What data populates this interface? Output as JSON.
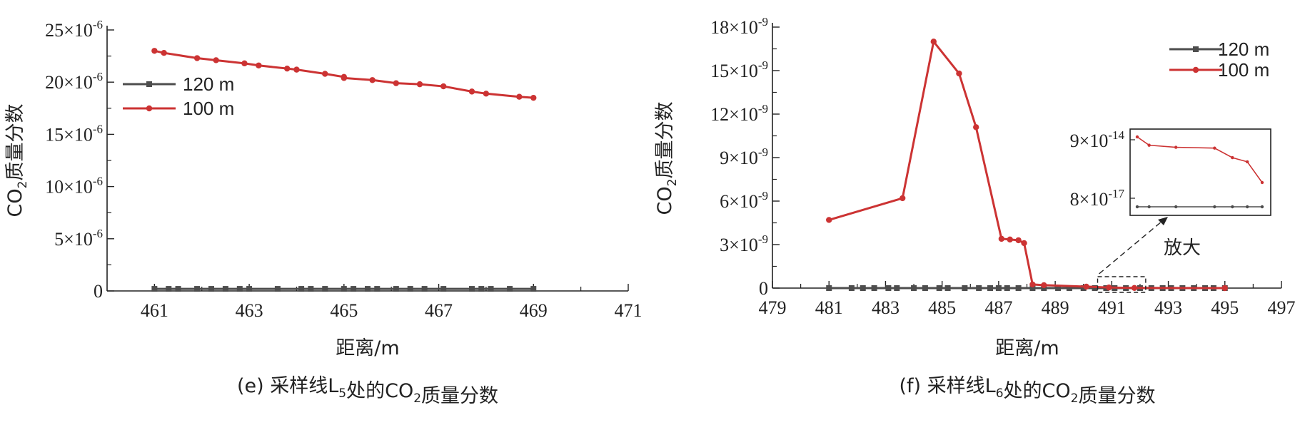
{
  "chart_data": [
    {
      "type": "line",
      "caption": "(e) 采样线L5处的CO2质量分数",
      "xlabel": "距离/m",
      "ylabel": "CO2质量分数",
      "xlim": [
        460,
        471
      ],
      "ylim": [
        0,
        2.5e-05
      ],
      "xticks": [
        461,
        463,
        465,
        467,
        469,
        471
      ],
      "yticks": [
        0,
        5e-06,
        1e-05,
        1.5e-05,
        2e-05,
        2.5e-05
      ],
      "ytick_labels": [
        "0",
        "5×10-6",
        "10×10-6",
        "15×10-6",
        "20×10-6",
        "25×10-6"
      ],
      "legend_position": "upper-left",
      "series": [
        {
          "name": "120 m",
          "color": "#4d4d4d",
          "marker": "square",
          "x": [
            461.0,
            461.3,
            461.5,
            461.9,
            462.2,
            462.5,
            462.8,
            463.0,
            463.6,
            464.1,
            464.3,
            464.6,
            465.0,
            465.2,
            465.5,
            465.7,
            466.1,
            466.4,
            466.7,
            467.1,
            467.7,
            467.9,
            468.1,
            468.5,
            469.0
          ],
          "y": [
            2e-07,
            2e-07,
            2e-07,
            2e-07,
            2e-07,
            2e-07,
            2e-07,
            2e-07,
            2e-07,
            2e-07,
            2e-07,
            2e-07,
            2e-07,
            2e-07,
            2e-07,
            2e-07,
            2e-07,
            2e-07,
            2e-07,
            2e-07,
            2e-07,
            2e-07,
            2e-07,
            2e-07,
            2e-07
          ]
        },
        {
          "name": "100 m",
          "color": "#cc3333",
          "marker": "circle",
          "x": [
            461.0,
            461.2,
            461.9,
            462.3,
            462.9,
            463.2,
            463.8,
            464.0,
            464.6,
            465.0,
            465.0,
            465.6,
            466.1,
            466.6,
            467.1,
            467.7,
            468.0,
            468.7,
            469.0
          ],
          "y": [
            2.3e-05,
            2.28e-05,
            2.23e-05,
            2.21e-05,
            2.18e-05,
            2.16e-05,
            2.13e-05,
            2.12e-05,
            2.08e-05,
            2.05e-05,
            2.04e-05,
            2.02e-05,
            1.99e-05,
            1.98e-05,
            1.96e-05,
            1.91e-05,
            1.89e-05,
            1.86e-05,
            1.85e-05
          ]
        }
      ]
    },
    {
      "type": "line",
      "caption": "(f) 采样线L6处的CO2质量分数",
      "xlabel": "距离/m",
      "ylabel": "CO2质量分数",
      "xlim": [
        479,
        497
      ],
      "ylim": [
        0,
        1.8e-08
      ],
      "xticks": [
        479,
        481,
        483,
        485,
        487,
        489,
        491,
        493,
        495,
        497
      ],
      "yticks": [
        0,
        3e-09,
        6e-09,
        9e-09,
        1.2e-08,
        1.5e-08,
        1.8e-08
      ],
      "ytick_labels": [
        "0",
        "3×10-9",
        "6×10-9",
        "9×10-9",
        "12×10-9",
        "15×10-9",
        "18×10-9"
      ],
      "legend_position": "top-right",
      "series": [
        {
          "name": "120 m",
          "color": "#4d4d4d",
          "marker": "square",
          "x": [
            481.0,
            481.8,
            482.2,
            482.6,
            483.1,
            483.4,
            484.0,
            484.4,
            484.9,
            485.2,
            485.8,
            486.3,
            486.7,
            487.0,
            487.3,
            487.7,
            488.2,
            488.6,
            489.1,
            489.5,
            490.0,
            490.4,
            490.8,
            491.1,
            491.5,
            492.0,
            492.4,
            492.8,
            493.1,
            493.5,
            493.9,
            494.3,
            494.6,
            495.0
          ],
          "y": [
            0,
            0,
            0,
            0,
            0,
            0,
            0,
            0,
            0,
            0,
            0,
            0,
            0,
            0,
            0,
            0,
            0,
            0,
            0,
            0,
            0,
            0,
            0,
            0,
            0,
            0,
            0,
            0,
            0,
            0,
            0,
            0,
            0,
            0
          ]
        },
        {
          "name": "100 m",
          "color": "#cc3333",
          "marker": "circle",
          "x": [
            481.0,
            483.6,
            484.7,
            485.6,
            486.2,
            487.1,
            487.4,
            487.7,
            487.9,
            488.2,
            488.6,
            490.1,
            490.9,
            491.8,
            495.0
          ],
          "y": [
            4.7e-09,
            6.2e-09,
            1.7e-08,
            1.48e-08,
            1.11e-08,
            3.4e-09,
            3.35e-09,
            3.3e-09,
            3.1e-09,
            2.5e-10,
            2e-10,
            1e-10,
            4e-11,
            1e-11,
            0.0
          ]
        }
      ],
      "inset": {
        "label": "放大",
        "yticks": [
          "9×10-14",
          "8×10-17"
        ],
        "series": [
          {
            "name": "100 m",
            "color": "#cc3333",
            "x": [
              492.1,
              492.5,
              493.4,
              494.7,
              495.3,
              495.8,
              496.3
            ],
            "y": [
              9.2e-14,
              9e-14,
              8.95e-14,
              8.93e-14,
              8.7e-14,
              8.6e-14,
              8.1e-14
            ]
          },
          {
            "name": "120 m",
            "color": "#4d4d4d",
            "x": [
              492.1,
              492.5,
              493.4,
              494.7,
              495.3,
              495.8,
              496.3
            ],
            "y": [
              8e-17,
              8e-17,
              8e-17,
              8e-17,
              8e-17,
              8e-17,
              8e-17
            ]
          }
        ]
      }
    }
  ]
}
